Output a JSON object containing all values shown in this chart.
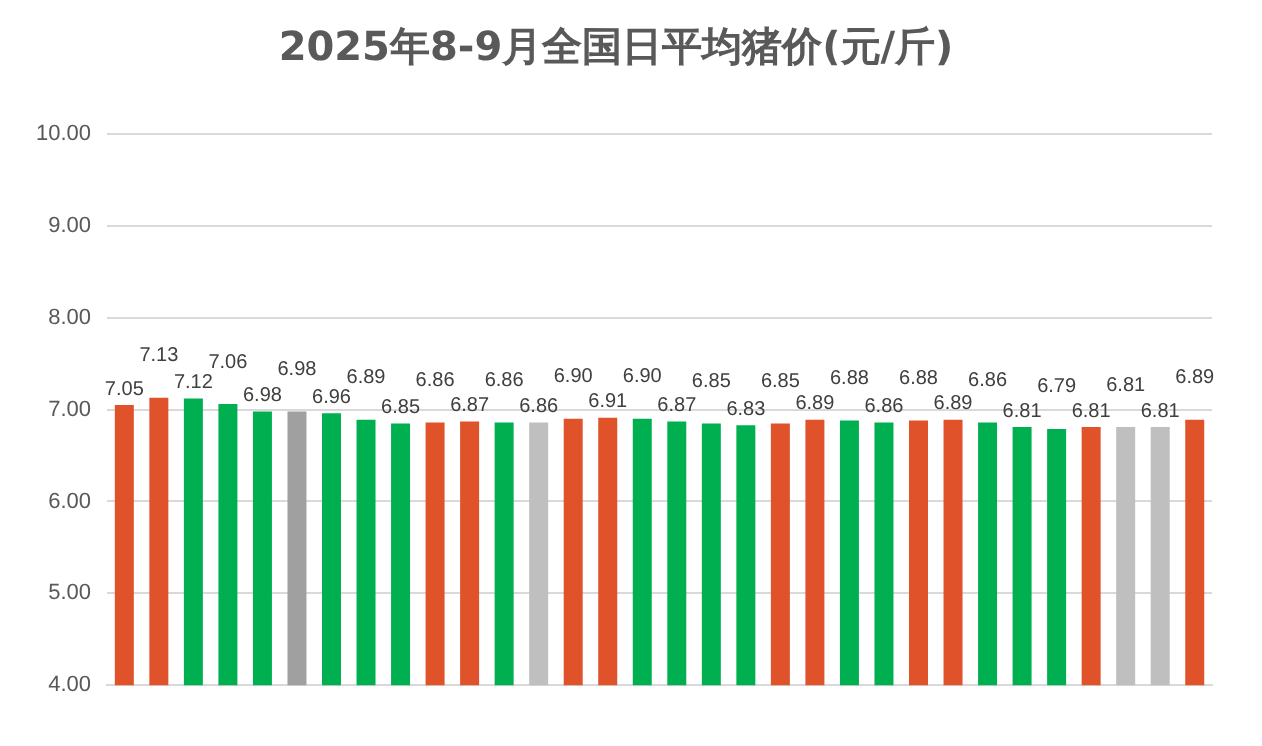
{
  "chart_data": {
    "type": "bar",
    "title": "2025年8-9月全国日平均猪价(元/斤)",
    "categories": [
      null,
      null,
      null,
      null,
      null,
      null,
      null,
      null,
      null,
      null,
      null,
      null,
      null,
      null,
      null,
      null,
      null,
      null,
      null,
      null,
      null,
      null,
      null,
      null,
      null,
      null,
      null,
      null,
      null,
      null,
      null,
      null
    ],
    "values": [
      7.05,
      7.13,
      7.12,
      7.06,
      6.98,
      6.98,
      6.96,
      6.89,
      6.85,
      6.86,
      6.87,
      6.86,
      6.86,
      6.9,
      6.91,
      6.9,
      6.87,
      6.85,
      6.83,
      6.85,
      6.89,
      6.88,
      6.86,
      6.88,
      6.89,
      6.86,
      6.81,
      6.79,
      6.81,
      6.81,
      6.81,
      6.89
    ],
    "colors": [
      "#e0522a",
      "#e0522a",
      "#00b050",
      "#00b050",
      "#00b050",
      "#a0a0a0",
      "#00b050",
      "#00b050",
      "#00b050",
      "#e0522a",
      "#e0522a",
      "#00b050",
      "#bfbfbf",
      "#e0522a",
      "#e0522a",
      "#00b050",
      "#00b050",
      "#00b050",
      "#00b050",
      "#e0522a",
      "#e0522a",
      "#00b050",
      "#00b050",
      "#e0522a",
      "#e0522a",
      "#00b050",
      "#00b050",
      "#00b050",
      "#e0522a",
      "#bfbfbf",
      "#bfbfbf",
      "#e0522a"
    ],
    "ylim": [
      4,
      10
    ],
    "yticks": [
      {
        "value": 4,
        "label": "4.00"
      },
      {
        "value": 5,
        "label": "5.00"
      },
      {
        "value": 6,
        "label": "6.00"
      },
      {
        "value": 7,
        "label": "7.00"
      },
      {
        "value": 8,
        "label": "8.00"
      },
      {
        "value": 9,
        "label": "9.00"
      },
      {
        "value": 10,
        "label": "10.00"
      }
    ],
    "value_labels": [
      "7.05",
      "7.13",
      "7.12",
      "7.06",
      "6.98",
      "6.98",
      "6.96",
      "6.89",
      "6.85",
      "6.86",
      "6.87",
      "6.86",
      "6.86",
      "6.90",
      "6.91",
      "6.90",
      "6.87",
      "6.85",
      "6.83",
      "6.85",
      "6.89",
      "6.88",
      "6.86",
      "6.88",
      "6.89",
      "6.86",
      "6.81",
      "6.79",
      "6.81",
      "6.81",
      "6.81",
      "6.89"
    ],
    "grid": "y"
  }
}
